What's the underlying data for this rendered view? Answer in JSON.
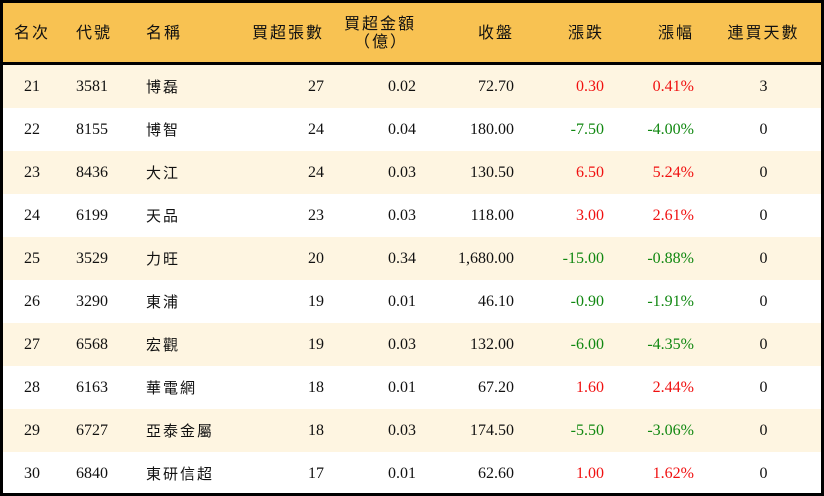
{
  "headers": [
    "名次",
    "代號",
    "名稱",
    "買超張數",
    "買超金額",
    "（億）",
    "收盤",
    "漲跌",
    "漲幅",
    "連買天數"
  ],
  "colors": {
    "header_bg": "#F8C252",
    "row_alt_bg": "#FEF5E1",
    "up": "#F01010",
    "down": "#118811"
  },
  "rows": [
    {
      "rank": "21",
      "code": "3581",
      "name": "博磊",
      "shares": "27",
      "amount": "0.02",
      "close": "72.70",
      "change": "0.30",
      "pct": "0.41%",
      "days": "3",
      "dir": "up"
    },
    {
      "rank": "22",
      "code": "8155",
      "name": "博智",
      "shares": "24",
      "amount": "0.04",
      "close": "180.00",
      "change": "-7.50",
      "pct": "-4.00%",
      "days": "0",
      "dir": "dn"
    },
    {
      "rank": "23",
      "code": "8436",
      "name": "大江",
      "shares": "24",
      "amount": "0.03",
      "close": "130.50",
      "change": "6.50",
      "pct": "5.24%",
      "days": "0",
      "dir": "up"
    },
    {
      "rank": "24",
      "code": "6199",
      "name": "天品",
      "shares": "23",
      "amount": "0.03",
      "close": "118.00",
      "change": "3.00",
      "pct": "2.61%",
      "days": "0",
      "dir": "up"
    },
    {
      "rank": "25",
      "code": "3529",
      "name": "力旺",
      "shares": "20",
      "amount": "0.34",
      "close": "1,680.00",
      "change": "-15.00",
      "pct": "-0.88%",
      "days": "0",
      "dir": "dn"
    },
    {
      "rank": "26",
      "code": "3290",
      "name": "東浦",
      "shares": "19",
      "amount": "0.01",
      "close": "46.10",
      "change": "-0.90",
      "pct": "-1.91%",
      "days": "0",
      "dir": "dn"
    },
    {
      "rank": "27",
      "code": "6568",
      "name": "宏觀",
      "shares": "19",
      "amount": "0.03",
      "close": "132.00",
      "change": "-6.00",
      "pct": "-4.35%",
      "days": "0",
      "dir": "dn"
    },
    {
      "rank": "28",
      "code": "6163",
      "name": "華電網",
      "shares": "18",
      "amount": "0.01",
      "close": "67.20",
      "change": "1.60",
      "pct": "2.44%",
      "days": "0",
      "dir": "up"
    },
    {
      "rank": "29",
      "code": "6727",
      "name": "亞泰金屬",
      "shares": "18",
      "amount": "0.03",
      "close": "174.50",
      "change": "-5.50",
      "pct": "-3.06%",
      "days": "0",
      "dir": "dn"
    },
    {
      "rank": "30",
      "code": "6840",
      "name": "東研信超",
      "shares": "17",
      "amount": "0.01",
      "close": "62.60",
      "change": "1.00",
      "pct": "1.62%",
      "days": "0",
      "dir": "up"
    }
  ]
}
